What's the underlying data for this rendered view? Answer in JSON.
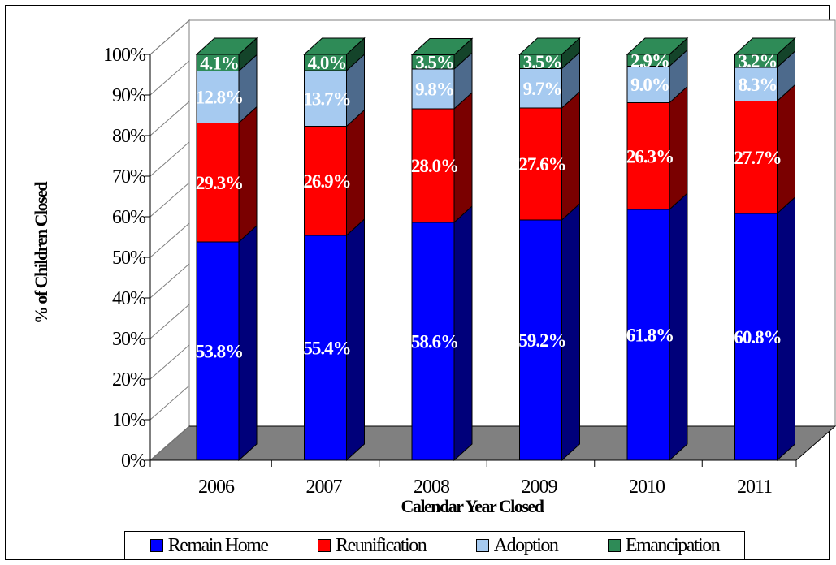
{
  "chart_data": {
    "type": "bar",
    "stacked": true,
    "three_d": true,
    "categories": [
      "2006",
      "2007",
      "2008",
      "2009",
      "2010",
      "2011"
    ],
    "series": [
      {
        "name": "Remain Home",
        "color": "#0000ff",
        "side_color": "#00007a",
        "values": [
          53.8,
          55.4,
          58.6,
          59.2,
          61.8,
          60.8
        ],
        "labels": [
          "53.8%",
          "55.4%",
          "58.6%",
          "59.2%",
          "61.8%",
          "60.8%"
        ]
      },
      {
        "name": "Reunification",
        "color": "#ff0000",
        "side_color": "#7a0000",
        "values": [
          29.3,
          26.9,
          28.0,
          27.6,
          26.3,
          27.7
        ],
        "labels": [
          "29.3%",
          "26.9%",
          "28.0%",
          "27.6%",
          "26.3%",
          "27.7%"
        ]
      },
      {
        "name": "Adoption",
        "color": "#a6caf0",
        "side_color": "#4d6a8c",
        "values": [
          12.8,
          13.7,
          9.8,
          9.7,
          9.0,
          8.3
        ],
        "labels": [
          "12.8%",
          "13.7%",
          "9.8%",
          "9.7%",
          "9.0%",
          "8.3%"
        ]
      },
      {
        "name": "Emancipation",
        "color": "#2e8b57",
        "side_color": "#14442a",
        "values": [
          4.1,
          4.0,
          3.5,
          3.5,
          2.9,
          3.2
        ],
        "labels": [
          "4.1%",
          "4.0%",
          "3.5%",
          "3.5%",
          "2.9%",
          "3.2%"
        ]
      }
    ],
    "yticks": [
      "0%",
      "10%",
      "20%",
      "30%",
      "40%",
      "50%",
      "60%",
      "70%",
      "80%",
      "90%",
      "100%"
    ],
    "ylim": [
      0,
      100
    ],
    "xlabel": "Calendar Year Closed",
    "ylabel": "% of Children Closed",
    "legend_position": "bottom",
    "grid": false,
    "floor_color": "#808080"
  },
  "legend": {
    "items": [
      {
        "label": "Remain Home",
        "color": "#0000ff"
      },
      {
        "label": "Reunification",
        "color": "#ff0000"
      },
      {
        "label": "Adoption",
        "color": "#a6caf0"
      },
      {
        "label": "Emancipation",
        "color": "#2e8b57"
      }
    ]
  }
}
